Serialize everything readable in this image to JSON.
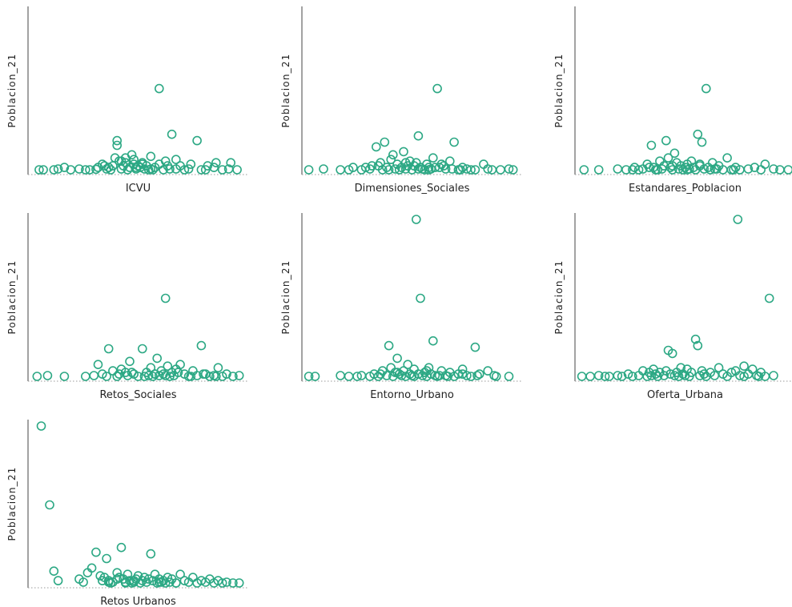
{
  "marker_color": "#2ca884",
  "chart_data": [
    {
      "type": "scatter",
      "xlabel": "ICVU",
      "ylabel": "Poblacion_21",
      "ylim": [
        0,
        100
      ],
      "x": [
        3,
        10,
        12,
        18,
        25,
        27,
        30,
        31,
        33,
        35,
        36,
        37,
        38,
        39,
        40,
        40,
        41,
        42,
        43,
        44,
        44,
        45,
        46,
        47,
        48,
        48,
        49,
        50,
        51,
        52,
        53,
        54,
        55,
        56,
        57,
        58,
        60,
        62,
        63,
        65,
        66,
        68,
        70,
        72,
        75,
        78,
        80,
        83,
        86,
        87,
        90,
        93,
        94,
        97,
        5,
        15,
        22,
        34,
        42,
        49,
        52,
        56,
        60,
        64,
        68,
        74,
        82
      ],
      "y": [
        0.5,
        0.5,
        1,
        0.5,
        0.5,
        0.5,
        0.8,
        2,
        4,
        1,
        2,
        0.5,
        3,
        8,
        16,
        19,
        6,
        1,
        3,
        5,
        8,
        0.5,
        2,
        10,
        4,
        7,
        1,
        3,
        2,
        5,
        1,
        3,
        0.5,
        9,
        0.5,
        2,
        4,
        0.5,
        6,
        1,
        23,
        1,
        3,
        0.5,
        4,
        19,
        0.5,
        3,
        2,
        5,
        0.5,
        1,
        5,
        0.5,
        0.5,
        2,
        1,
        3,
        6,
        2,
        4,
        1,
        52,
        3,
        7,
        1,
        0.5
      ]
    },
    {
      "type": "scatter",
      "xlabel": "Dimensiones_Sociales",
      "ylabel": "Poblacion_21",
      "ylim": [
        0,
        100
      ],
      "x": [
        1,
        8,
        16,
        20,
        22,
        26,
        30,
        31,
        33,
        35,
        36,
        37,
        38,
        40,
        41,
        42,
        43,
        44,
        45,
        46,
        47,
        48,
        49,
        50,
        51,
        52,
        53,
        54,
        55,
        56,
        57,
        58,
        59,
        60,
        61,
        62,
        64,
        65,
        66,
        68,
        70,
        72,
        74,
        76,
        78,
        84,
        86,
        88,
        92,
        96,
        98,
        28,
        34,
        39,
        47,
        53,
        58,
        63,
        69,
        73,
        80
      ],
      "y": [
        0.5,
        1,
        0.5,
        0.5,
        2,
        0.5,
        1,
        3,
        15,
        5,
        0.5,
        18,
        2,
        7,
        10,
        1,
        4,
        0.5,
        2,
        12,
        1,
        3,
        6,
        0.5,
        3,
        5,
        22,
        2,
        1,
        0.5,
        4,
        2,
        1,
        8,
        2,
        52,
        4,
        3,
        1,
        6,
        18,
        0.5,
        2,
        1,
        0.5,
        4,
        1,
        0.5,
        0.5,
        1,
        0.5,
        2,
        3,
        0.5,
        5,
        1,
        0.5,
        2,
        1,
        0.5,
        0.5
      ]
    },
    {
      "type": "scatter",
      "xlabel": "Estandares_Poblacion",
      "ylabel": "Poblacion_21",
      "ylim": [
        0,
        100
      ],
      "x": [
        2,
        9,
        18,
        22,
        26,
        28,
        30,
        32,
        34,
        35,
        36,
        38,
        39,
        40,
        41,
        42,
        43,
        44,
        45,
        46,
        47,
        48,
        49,
        50,
        51,
        52,
        53,
        54,
        55,
        56,
        57,
        58,
        59,
        60,
        61,
        62,
        63,
        64,
        66,
        68,
        70,
        72,
        74,
        76,
        80,
        86,
        88,
        92,
        95,
        99,
        25,
        33,
        37,
        44,
        51,
        57,
        65,
        73,
        83
      ],
      "y": [
        0.5,
        0.5,
        1,
        0.5,
        2,
        0.5,
        1,
        4,
        16,
        2,
        0.5,
        6,
        1,
        3,
        19,
        8,
        2,
        0.5,
        11,
        5,
        1,
        3,
        0.5,
        2,
        4,
        1,
        6,
        2,
        0.5,
        23,
        3,
        18,
        1,
        52,
        2,
        0.5,
        5,
        1,
        3,
        0.5,
        8,
        0.5,
        2,
        0.5,
        1,
        0.5,
        4,
        1,
        0.5,
        0.5,
        0.5,
        2,
        0.5,
        3,
        0.5,
        4,
        1,
        0.5,
        2
      ]
    },
    {
      "type": "scatter",
      "xlabel": "Retos_Sociales",
      "ylabel": "Poblacion_21",
      "ylim": [
        0,
        100
      ],
      "x": [
        2,
        7,
        15,
        25,
        29,
        31,
        33,
        35,
        36,
        38,
        40,
        42,
        44,
        45,
        46,
        48,
        50,
        52,
        54,
        55,
        56,
        57,
        58,
        59,
        60,
        61,
        62,
        63,
        64,
        65,
        66,
        67,
        68,
        70,
        72,
        74,
        76,
        78,
        80,
        82,
        84,
        86,
        88,
        90,
        92,
        95,
        98,
        41,
        47,
        53,
        58,
        63,
        69,
        75,
        81,
        87
      ],
      "y": [
        0.5,
        1,
        0.5,
        0.5,
        1,
        8,
        2,
        0.5,
        18,
        4,
        0.5,
        5,
        3,
        1,
        10,
        2,
        0.5,
        18,
        3,
        1,
        6,
        0.5,
        2,
        12,
        1,
        4,
        2,
        50,
        7,
        0.5,
        3,
        1,
        5,
        8,
        2,
        0.5,
        4,
        1,
        20,
        2,
        0.5,
        1,
        6,
        0.5,
        2,
        0.5,
        1,
        2,
        3,
        0.5,
        2,
        1,
        3,
        0.5,
        2,
        0.5
      ]
    },
    {
      "type": "scatter",
      "xlabel": "Entorno_Urbano",
      "ylabel": "Poblacion_21",
      "ylim": [
        0,
        100
      ],
      "x": [
        1,
        4,
        16,
        20,
        24,
        26,
        30,
        32,
        34,
        36,
        38,
        39,
        40,
        41,
        42,
        43,
        44,
        45,
        46,
        47,
        48,
        49,
        50,
        51,
        52,
        53,
        54,
        55,
        56,
        57,
        58,
        59,
        60,
        61,
        62,
        64,
        66,
        68,
        70,
        72,
        74,
        76,
        78,
        80,
        82,
        86,
        89,
        90,
        96,
        35,
        43,
        51,
        57,
        63,
        67,
        74,
        81
      ],
      "y": [
        0.5,
        0.5,
        1,
        0.5,
        0.5,
        1,
        0.5,
        2,
        0.5,
        4,
        1,
        20,
        6,
        0.5,
        3,
        12,
        2,
        1,
        4,
        0.5,
        8,
        2,
        1,
        5,
        100,
        2,
        50,
        1,
        3,
        0.5,
        6,
        2,
        23,
        1,
        0.5,
        4,
        1,
        3,
        0.5,
        2,
        5,
        1,
        0.5,
        19,
        2,
        4,
        1,
        0.5,
        0.5,
        2,
        3,
        0.5,
        4,
        1,
        0.5,
        2,
        1
      ]
    },
    {
      "type": "scatter",
      "xlabel": "Oferta_Urbana",
      "ylabel": "Poblacion_21",
      "ylim": [
        0,
        100
      ],
      "x": [
        1,
        5,
        9,
        12,
        14,
        18,
        20,
        23,
        25,
        28,
        30,
        32,
        33,
        34,
        35,
        36,
        37,
        38,
        40,
        41,
        42,
        43,
        44,
        45,
        46,
        47,
        48,
        49,
        50,
        51,
        52,
        53,
        55,
        56,
        57,
        58,
        59,
        60,
        62,
        64,
        66,
        68,
        70,
        72,
        74,
        76,
        78,
        80,
        82,
        84,
        86,
        88,
        75,
        78,
        85,
        90,
        92
      ],
      "y": [
        0.5,
        0.5,
        1,
        0.5,
        0.5,
        1,
        0.5,
        2,
        0.5,
        1,
        4,
        0.5,
        3,
        1,
        5,
        2,
        0.5,
        3,
        1,
        4,
        17,
        2,
        15,
        1,
        3,
        0.5,
        6,
        2,
        1,
        5,
        0.5,
        3,
        24,
        20,
        1,
        4,
        2,
        0.5,
        3,
        1,
        6,
        2,
        0.5,
        3,
        4,
        1,
        0.5,
        2,
        5,
        1,
        3,
        0.5,
        100,
        7,
        0.5,
        50,
        1
      ]
    },
    {
      "type": "scatter",
      "xlabel": "Retos Urbanos",
      "ylabel": "Poblacion_21",
      "ylim": [
        0,
        100
      ],
      "x": [
        4,
        8,
        10,
        12,
        22,
        24,
        26,
        28,
        30,
        32,
        33,
        34,
        35,
        36,
        37,
        38,
        40,
        41,
        42,
        43,
        44,
        45,
        46,
        47,
        48,
        49,
        50,
        51,
        52,
        53,
        54,
        55,
        56,
        57,
        58,
        59,
        60,
        61,
        62,
        63,
        64,
        65,
        66,
        68,
        70,
        72,
        74,
        76,
        78,
        80,
        82,
        84,
        86,
        88,
        90,
        92,
        95,
        98,
        36,
        40,
        44,
        48,
        60,
        68
      ],
      "y": [
        100,
        50,
        8,
        2,
        3,
        1,
        7,
        10,
        20,
        5,
        2,
        4,
        16,
        2,
        0.5,
        1,
        7,
        4,
        23,
        3,
        1,
        6,
        2,
        0.5,
        1,
        3,
        5,
        0.5,
        2,
        4,
        1,
        3,
        19,
        2,
        6,
        0.5,
        3,
        1,
        2,
        0.5,
        4,
        1,
        3,
        0.5,
        6,
        2,
        1,
        4,
        0.5,
        2,
        1,
        3,
        0.5,
        2,
        0.5,
        1,
        0.5,
        0.5,
        1,
        3,
        0.5,
        2,
        1,
        0.5
      ]
    }
  ]
}
